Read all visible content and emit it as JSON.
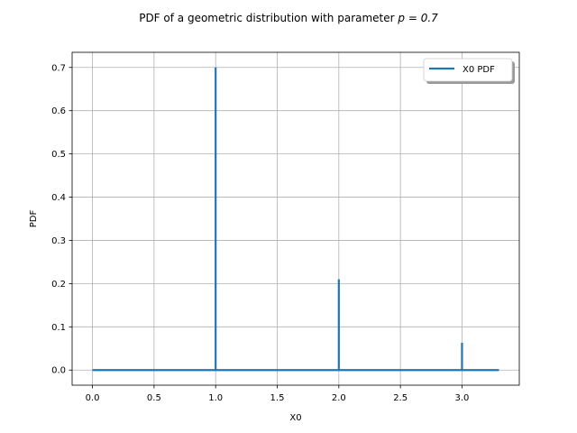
{
  "chart_data": {
    "type": "line",
    "title": "PDF of a geometric distribution with parameter p = 0.7",
    "title_parts": {
      "prefix": "PDF of a geometric distribution with parameter ",
      "math": "p = 0.7"
    },
    "xlabel": "X0",
    "ylabel": "PDF",
    "xlim": [
      -0.165,
      3.465
    ],
    "ylim": [
      -0.035,
      0.735
    ],
    "xticks": [
      0.0,
      0.5,
      1.0,
      1.5,
      2.0,
      2.5,
      3.0
    ],
    "xtick_labels": [
      "0.0",
      "0.5",
      "1.0",
      "1.5",
      "2.0",
      "2.5",
      "3.0"
    ],
    "yticks": [
      0.0,
      0.1,
      0.2,
      0.3,
      0.4,
      0.5,
      0.6,
      0.7
    ],
    "ytick_labels": [
      "0.0",
      "0.1",
      "0.2",
      "0.3",
      "0.4",
      "0.5",
      "0.6",
      "0.7"
    ],
    "grid": true,
    "legend_position": "top-right",
    "series": [
      {
        "name": "X0 PDF",
        "color": "#1f77b4",
        "points": [
          {
            "x": 0.0,
            "y": 0.0
          },
          {
            "x": 1.0,
            "y": 0.0
          },
          {
            "x": 1.0,
            "y": 0.7
          },
          {
            "x": 1.0,
            "y": 0.0
          },
          {
            "x": 2.0,
            "y": 0.0
          },
          {
            "x": 2.0,
            "y": 0.21
          },
          {
            "x": 2.0,
            "y": 0.0
          },
          {
            "x": 3.0,
            "y": 0.0
          },
          {
            "x": 3.0,
            "y": 0.063
          },
          {
            "x": 3.0,
            "y": 0.0
          },
          {
            "x": 3.3,
            "y": 0.0
          }
        ]
      }
    ]
  }
}
